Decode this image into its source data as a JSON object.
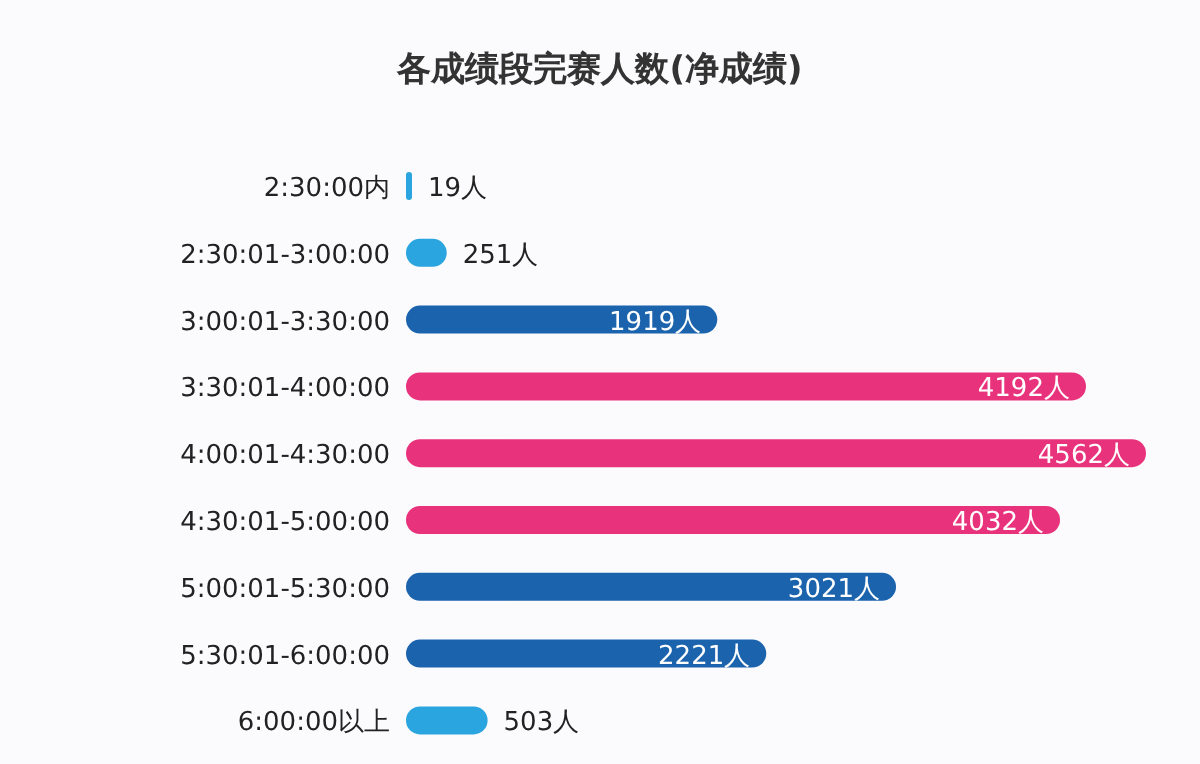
{
  "chart_data": {
    "type": "bar",
    "orientation": "horizontal",
    "title": "各成绩段完赛人数(净成绩)",
    "categories": [
      "2:30:00内",
      "2:30:01-3:00:00",
      "3:00:01-3:30:00",
      "3:30:01-4:00:00",
      "4:00:01-4:30:00",
      "4:30:01-5:00:00",
      "5:00:01-5:30:00",
      "5:30:01-6:00:00",
      "6:00:00以上"
    ],
    "values": [
      19,
      251,
      1919,
      4192,
      4562,
      4032,
      3021,
      2221,
      503
    ],
    "colors": [
      "#2aa5df",
      "#2aa5df",
      "#1b63ad",
      "#e8327c",
      "#e8327c",
      "#e8327c",
      "#1b63ad",
      "#1b63ad",
      "#2aa5df"
    ],
    "value_labels": [
      "19人",
      "251人",
      "1919人",
      "4192人",
      "4562人",
      "4032人",
      "3021人",
      "2221人",
      "503人"
    ]
  }
}
